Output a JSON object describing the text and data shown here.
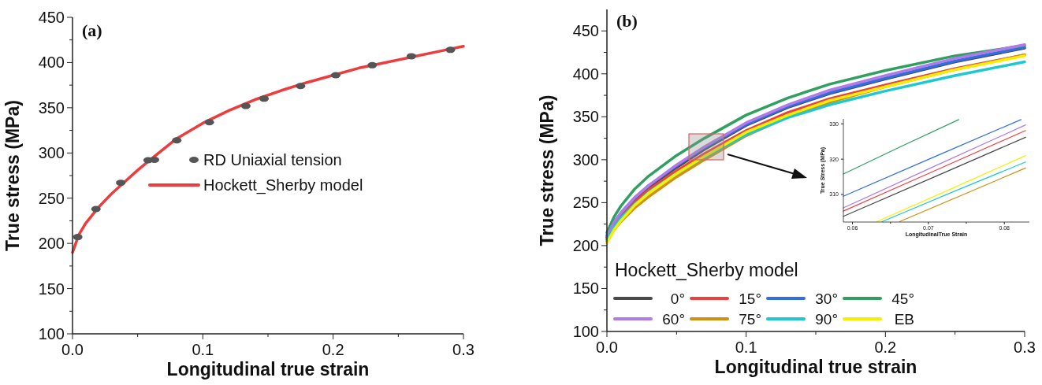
{
  "chart_data": [
    {
      "type": "line",
      "title": "(a)",
      "xlabel": "Longitudinal true strain",
      "ylabel": "True stress (MPa)",
      "xlim": [
        0,
        0.3
      ],
      "ylim": [
        100,
        450
      ],
      "xticks": [
        {
          "value": 0,
          "label": "0.0"
        },
        {
          "value": 0.05,
          "label": null
        },
        0.1,
        {
          "value": 0.15,
          "label": null
        },
        0.2,
        {
          "value": 0.25,
          "label": null
        },
        0.3
      ],
      "yticks": [
        100,
        {
          "value": 125,
          "label": null
        },
        150,
        {
          "value": 175,
          "label": null
        },
        200,
        {
          "value": 225,
          "label": null
        },
        250,
        {
          "value": 275,
          "label": null
        },
        300,
        {
          "value": 325,
          "label": null
        },
        350,
        {
          "value": 375,
          "label": null
        },
        400,
        {
          "value": 425,
          "label": null
        },
        450
      ],
      "legend": "right",
      "grid": false,
      "series": [
        {
          "name": "RD Uniaxial tension",
          "color": "#555555",
          "type": "scatter",
          "marker": "circle",
          "x": [
            0.004,
            0.018,
            0.037,
            0.058,
            0.08,
            0.105,
            0.133,
            0.147,
            0.175,
            0.202,
            0.23,
            0.26,
            0.29
          ],
          "values": [
            207,
            238,
            267,
            292,
            314,
            334,
            352,
            360,
            374,
            386,
            397,
            407,
            414
          ]
        },
        {
          "name": "Hockett_Sherby model",
          "color": "#ef3b3b",
          "line_style": "solid",
          "x": [
            0,
            0.005,
            0.01,
            0.02,
            0.03,
            0.04,
            0.05,
            0.06,
            0.08,
            0.1,
            0.12,
            0.14,
            0.16,
            0.18,
            0.2,
            0.22,
            0.24,
            0.26,
            0.28,
            0.3
          ],
          "values": [
            190,
            210,
            222,
            240,
            255,
            268,
            281,
            293,
            316,
            333,
            347,
            359,
            369,
            378,
            386,
            394,
            400,
            406,
            412,
            418
          ]
        }
      ]
    },
    {
      "type": "line",
      "title": "(b)",
      "xlabel": "Longitudinal true strain",
      "ylabel": "True stress (MPa)",
      "xlim": [
        0,
        0.3
      ],
      "ylim": [
        100,
        475
      ],
      "xticks": [
        {
          "value": 0,
          "label": "0.0"
        },
        {
          "value": 0.05,
          "label": null
        },
        0.1,
        {
          "value": 0.15,
          "label": null
        },
        0.2,
        {
          "value": 0.25,
          "label": null
        },
        0.3
      ],
      "yticks": [
        100,
        {
          "value": 125,
          "label": null
        },
        150,
        {
          "value": 175,
          "label": null
        },
        200,
        {
          "value": 225,
          "label": null
        },
        250,
        {
          "value": 275,
          "label": null
        },
        300,
        {
          "value": 325,
          "label": null
        },
        350,
        {
          "value": 375,
          "label": null
        },
        400,
        {
          "value": 425,
          "label": null
        },
        450
      ],
      "legend": "bottom left",
      "legend_title": "Hockett_Sherby model",
      "grid": false,
      "x": [
        0,
        0.005,
        0.01,
        0.02,
        0.03,
        0.05,
        0.07,
        0.1,
        0.13,
        0.16,
        0.2,
        0.25,
        0.3
      ],
      "series": [
        {
          "name": "0°",
          "color": "#4a4a4a",
          "values": [
            210,
            225,
            236,
            254,
            268,
            291,
            312,
            340,
            361,
            377,
            394,
            414,
            430
          ]
        },
        {
          "name": "15°",
          "color": "#ef4040",
          "values": [
            208,
            223,
            234,
            251,
            265,
            287,
            307,
            334,
            355,
            371,
            387,
            406,
            422
          ]
        },
        {
          "name": "30°",
          "color": "#2f6fe0",
          "values": [
            212,
            227,
            238,
            256,
            270,
            293,
            314,
            341,
            362,
            378,
            395,
            415,
            431
          ]
        },
        {
          "name": "45°",
          "color": "#2fa060",
          "values": [
            215,
            233,
            246,
            266,
            281,
            305,
            325,
            352,
            372,
            388,
            404,
            421,
            433
          ]
        },
        {
          "name": "60°",
          "color": "#b07ae8",
          "values": [
            211,
            227,
            238,
            256,
            270,
            294,
            315,
            343,
            364,
            381,
            398,
            418,
            434
          ]
        },
        {
          "name": "75°",
          "color": "#d09010",
          "values": [
            205,
            218,
            228,
            244,
            257,
            280,
            300,
            328,
            350,
            367,
            385,
            405,
            422
          ]
        },
        {
          "name": "90°",
          "color": "#1fc8d0",
          "values": [
            207,
            221,
            232,
            248,
            262,
            284,
            303,
            329,
            349,
            364,
            380,
            398,
            414
          ]
        },
        {
          "name": "EB",
          "color": "#f5f000",
          "values": [
            203,
            218,
            229,
            247,
            261,
            284,
            304,
            332,
            352,
            369,
            385,
            405,
            421
          ]
        }
      ]
    },
    {
      "type": "line",
      "xlabel": "LongitudinalTrue Strain",
      "ylabel": "True Stress (MPa)",
      "xlim": [
        0.0588,
        0.0833
      ],
      "ylim": [
        302.2,
        331.4
      ],
      "xticks": [
        0.06,
        {
          "value": 0.065,
          "label": null
        },
        0.07,
        {
          "value": 0.075,
          "label": null
        },
        0.08
      ],
      "yticks": [
        310,
        320,
        330
      ],
      "grid": false,
      "legend": false,
      "series": [
        {
          "color": "#2fa060",
          "x": [
            0.0588,
            0.0664,
            0.074
          ],
          "values": [
            315.8,
            323.6,
            331.2
          ]
        },
        {
          "color": "#2f6fe0",
          "x": [
            0.0588,
            0.0705,
            0.0822
          ],
          "values": [
            309.5,
            320.4,
            331.2
          ]
        },
        {
          "color": "#b07ae8",
          "x": [
            0.0588,
            0.0708,
            0.0828
          ],
          "values": [
            306.2,
            318,
            329.7
          ]
        },
        {
          "color": "#ef4040",
          "x": [
            0.0588,
            0.0708,
            0.0828
          ],
          "values": [
            305.3,
            316.7,
            328.1
          ]
        },
        {
          "color": "#4a4a4a",
          "x": [
            0.0588,
            0.0708,
            0.0828
          ],
          "values": [
            303.8,
            315,
            326.2
          ]
        },
        {
          "color": "#f5f000",
          "x": [
            0.0632,
            0.073,
            0.0828
          ],
          "values": [
            302.3,
            311.6,
            321
          ]
        },
        {
          "color": "#1fc8d0",
          "x": [
            0.0639,
            0.0733,
            0.0828
          ],
          "values": [
            302.3,
            310.8,
            319.2
          ]
        },
        {
          "color": "#d09010",
          "x": [
            0.0662,
            0.0745,
            0.0828
          ],
          "values": [
            302.3,
            309.9,
            317.5
          ]
        }
      ]
    }
  ]
}
